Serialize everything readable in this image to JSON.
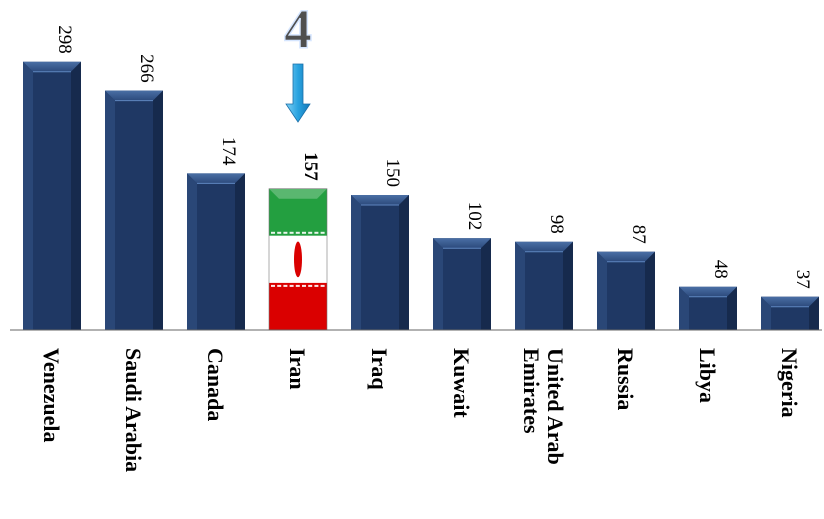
{
  "chart_data": {
    "type": "bar",
    "categories": [
      "Venezuela",
      "Saudi Arabia",
      "Canada",
      "Iran",
      "Iraq",
      "Kuwait",
      "United Arab Emirates",
      "Russia",
      "Libya",
      "Nigeria"
    ],
    "values": [
      298,
      266,
      174,
      157,
      150,
      102,
      98,
      87,
      48,
      37
    ],
    "value_labels": [
      "298",
      "266",
      "174",
      "157",
      "150",
      "102",
      "98",
      "87",
      "48",
      "37"
    ],
    "ylim": [
      0,
      320
    ],
    "grid": false,
    "bar_color": "#1f3864",
    "highlight": {
      "category": "Iran",
      "rank_label": "4",
      "flag_colors": {
        "green": "#239f40",
        "white": "#ffffff",
        "red": "#da0000"
      },
      "arrow_color": "#29a3e0"
    }
  }
}
